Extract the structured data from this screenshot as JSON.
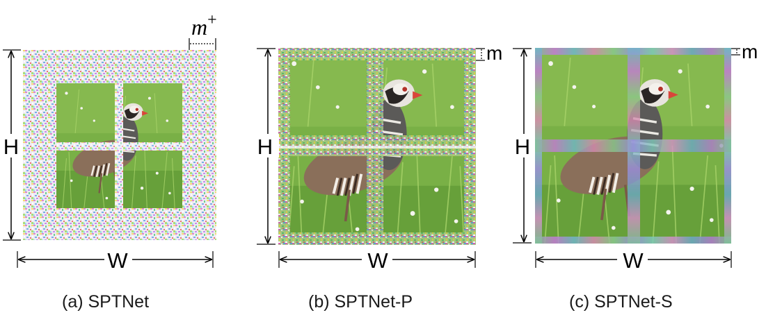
{
  "panels": [
    {
      "id": "a",
      "caption": "(a) SPTNet",
      "height_label": "H",
      "width_label": "W",
      "margin_label": "m",
      "margin_superscript": "+",
      "style": "heavy-noise"
    },
    {
      "id": "b",
      "caption": "(b) SPTNet-P",
      "height_label": "H",
      "width_label": "W",
      "margin_label": "m",
      "style": "patch-noise"
    },
    {
      "id": "c",
      "caption": "(c) SPTNet-S",
      "height_label": "H",
      "width_label": "W",
      "margin_label": "m",
      "style": "smooth-color"
    }
  ],
  "colors": {
    "grass": "#6fa83e",
    "grass_light": "#9cc85a",
    "bird_body": "#8a6f5a",
    "bird_head": "#e8e4de",
    "beak": "#d9453a"
  }
}
